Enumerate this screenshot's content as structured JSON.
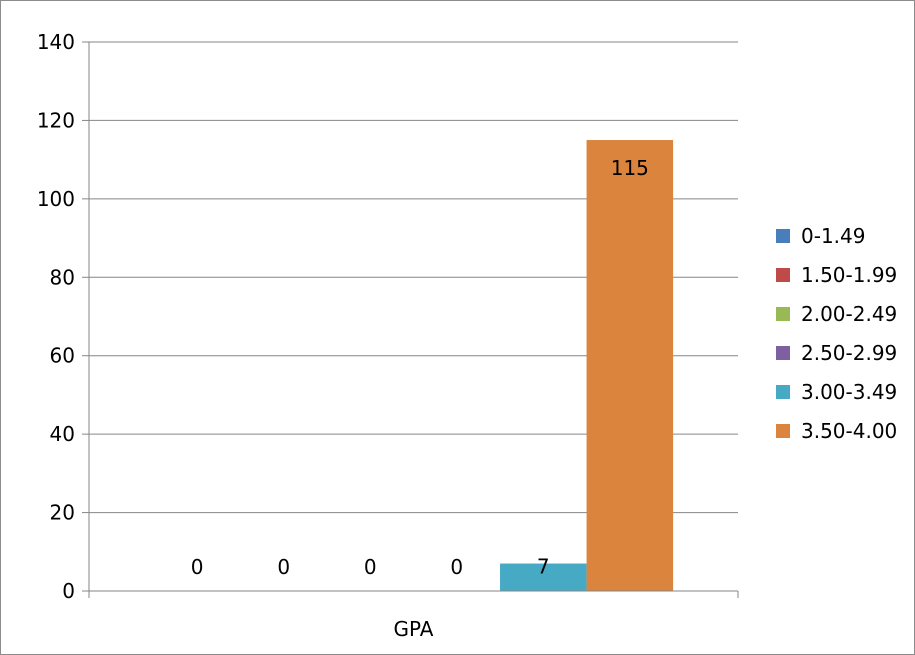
{
  "chart_data": {
    "type": "bar",
    "title": "",
    "xlabel": "",
    "ylabel": "",
    "categories": [
      "GPA"
    ],
    "series": [
      {
        "name": "0-1.49",
        "values": [
          0
        ],
        "color": "#4a7ebb"
      },
      {
        "name": "1.50-1.99",
        "values": [
          0
        ],
        "color": "#be4b48"
      },
      {
        "name": "2.00-2.49",
        "values": [
          0
        ],
        "color": "#98b954"
      },
      {
        "name": "2.50-2.99",
        "values": [
          0
        ],
        "color": "#7d60a0"
      },
      {
        "name": "3.00-3.49",
        "values": [
          7
        ],
        "color": "#46aac5"
      },
      {
        "name": "3.50-4.00",
        "values": [
          115
        ],
        "color": "#db843d"
      }
    ],
    "ylim": [
      0,
      140
    ],
    "yticks": [
      0,
      20,
      40,
      60,
      80,
      100,
      120,
      140
    ],
    "grid": true,
    "legend": "right",
    "data_labels": true
  }
}
